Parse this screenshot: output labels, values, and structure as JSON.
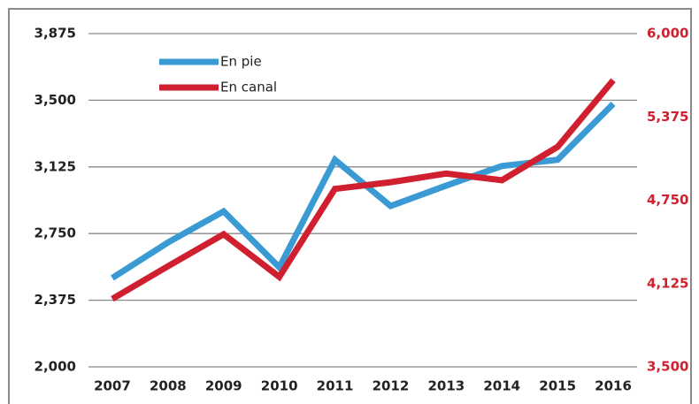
{
  "chart_data": {
    "type": "line",
    "categories": [
      "2007",
      "2008",
      "2009",
      "2010",
      "2011",
      "2012",
      "2013",
      "2014",
      "2015",
      "2016"
    ],
    "series": [
      {
        "name": "En pie",
        "color": "#3a9ad4",
        "values": [
          2500,
          2700,
          2875,
          2560,
          3165,
          2905,
          3020,
          3130,
          3165,
          3480
        ]
      },
      {
        "name": "En canal",
        "color": "#d0202f",
        "axis": "y2",
        "values": [
          4010,
          4255,
          4495,
          4175,
          4835,
          4885,
          4950,
          4900,
          5150,
          5650
        ]
      }
    ],
    "ylim": [
      2000,
      3875
    ],
    "yticks": [
      {
        "value": 2000,
        "label": "2,000"
      },
      {
        "value": 2375,
        "label": "2,375"
      },
      {
        "value": 2750,
        "label": "2,750"
      },
      {
        "value": 3125,
        "label": "3,125"
      },
      {
        "value": 3500,
        "label": "3,500"
      },
      {
        "value": 3875,
        "label": "3,875"
      }
    ],
    "y2lim": [
      3500,
      6000
    ],
    "y2ticks": [
      {
        "value": 3500,
        "label": "3,500"
      },
      {
        "value": 4125,
        "label": "4,125"
      },
      {
        "value": 4750,
        "label": "4,750"
      },
      {
        "value": 5375,
        "label": "5,375"
      },
      {
        "value": 6000,
        "label": "6,000"
      }
    ],
    "grid": true,
    "legend": "top-left",
    "y2color": "#d0202f"
  }
}
